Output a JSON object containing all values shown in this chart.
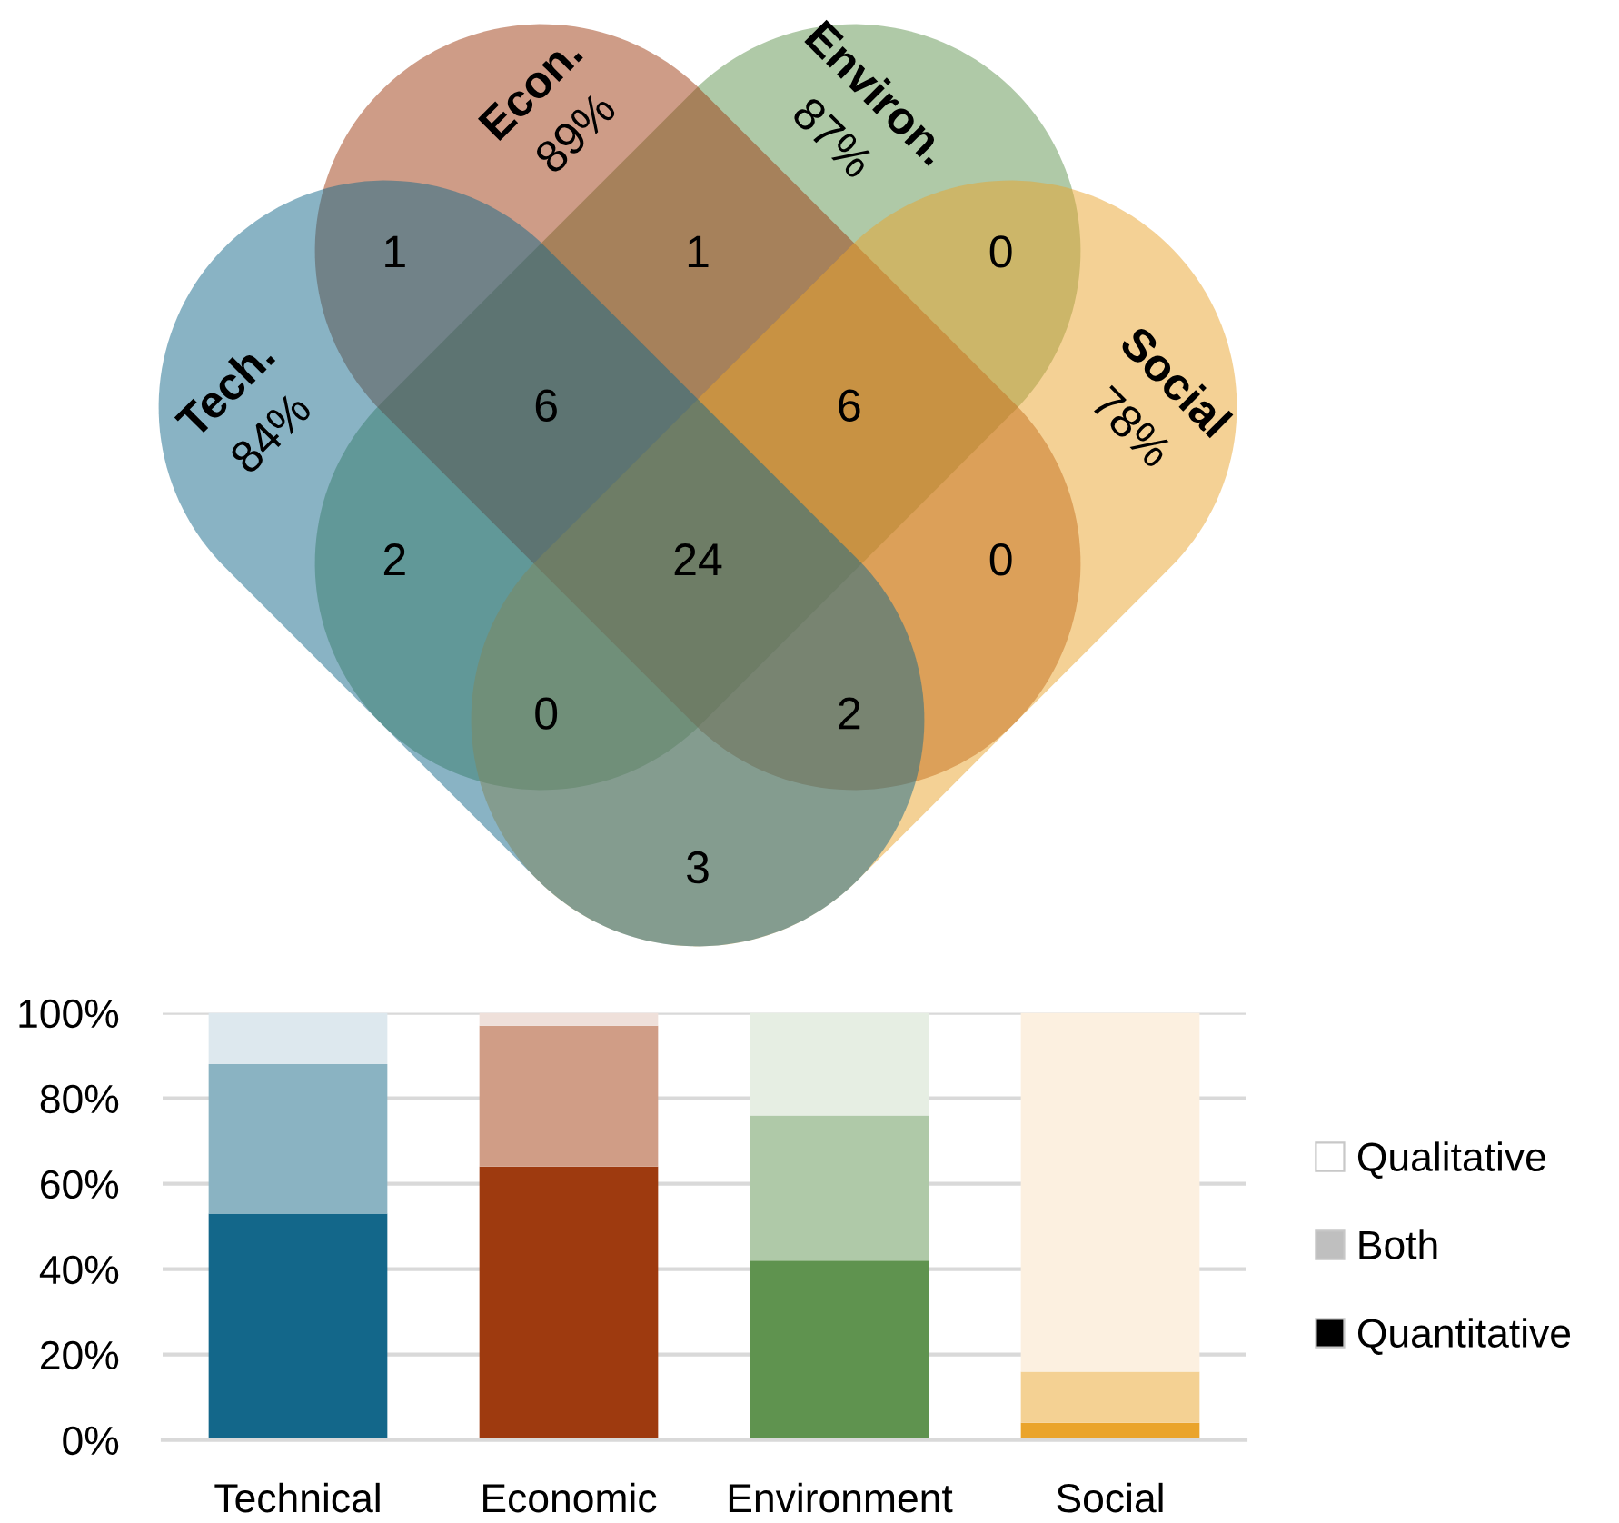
{
  "chart_data": [
    {
      "type": "other",
      "categories": [
        "Tech.",
        "Econ.",
        "Environ.",
        "Social"
      ],
      "colors": [
        "#13678a",
        "#9e3a0f",
        "#5f934f",
        "#eaa42b"
      ],
      "value_labels": [
        "84%",
        "89%",
        "87%",
        "78%"
      ],
      "annotations": [
        "1",
        "1",
        "0",
        "6",
        "6",
        "2",
        "24",
        "0",
        "0",
        "2",
        "3"
      ]
    },
    {
      "type": "bar",
      "stacked": true,
      "categories": [
        "Technical",
        "Economic",
        "Environment",
        "Social"
      ],
      "series": [
        {
          "name": "Quantitative",
          "color": "#000000",
          "colors": [
            "#13678a",
            "#9e3a0f",
            "#5f934f",
            "#eaa42b"
          ],
          "values": [
            53,
            64,
            42,
            4
          ]
        },
        {
          "name": "Both",
          "color": "#bfbfbf",
          "colors": [
            "#8ab3c2",
            "#d09d86",
            "#afc9a8",
            "#f4d193"
          ],
          "values": [
            35,
            33,
            34,
            12
          ]
        },
        {
          "name": "Qualitative",
          "color": "#ffffff",
          "colors": [
            "#dde8ee",
            "#efe0da",
            "#e6eee3",
            "#fcf0e0"
          ],
          "values": [
            12,
            3,
            24,
            84
          ]
        }
      ],
      "ylim": [
        0,
        100
      ],
      "yticks": [
        {
          "value": 0,
          "label": "0%"
        },
        {
          "value": 20,
          "label": "20%"
        },
        {
          "value": 40,
          "label": "40%"
        },
        {
          "value": 60,
          "label": "60%"
        },
        {
          "value": 80,
          "label": "80%"
        },
        {
          "value": 100,
          "label": "100%"
        }
      ],
      "grid": "y",
      "legend": "right"
    }
  ]
}
